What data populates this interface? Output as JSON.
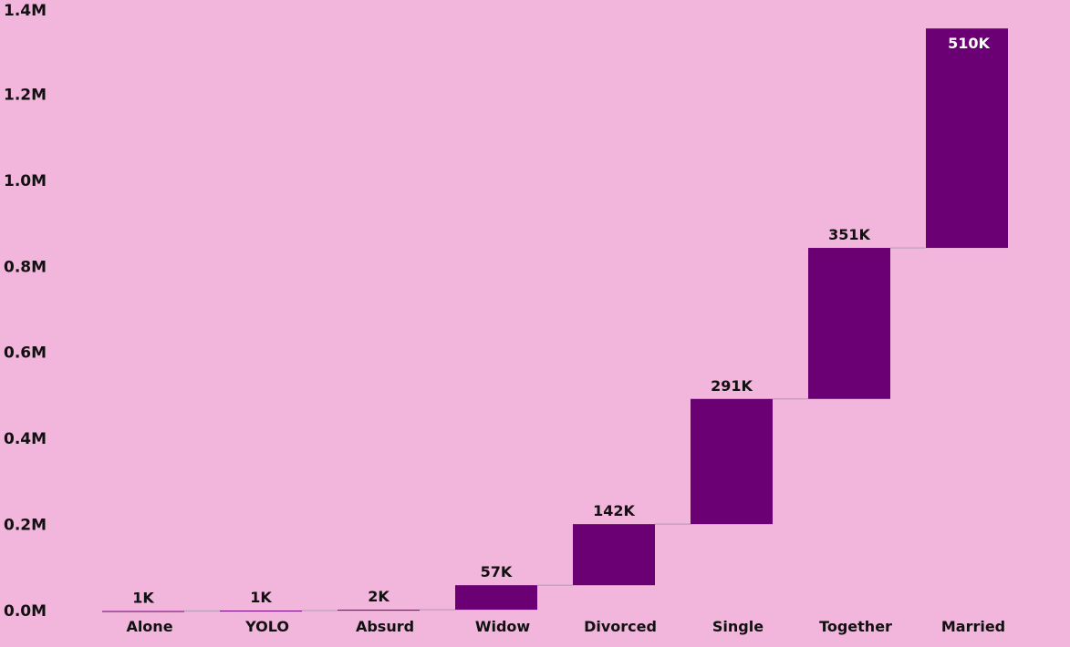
{
  "colors": {
    "background": "#f2b5dc",
    "bar": "#6a0073",
    "text": "#111111",
    "inside_label": "#ffffff",
    "connector": "#b8a0b8"
  },
  "chart_data": {
    "type": "waterfall",
    "categories": [
      "Alone",
      "YOLO",
      "Absurd",
      "Widow",
      "Divorced",
      "Single",
      "Together",
      "Married"
    ],
    "values": [
      1000,
      1000,
      2000,
      57000,
      142000,
      291000,
      351000,
      510000
    ],
    "data_labels": [
      "1K",
      "1K",
      "2K",
      "57K",
      "142K",
      "291K",
      "351K",
      "510K"
    ],
    "y_ticks": [
      0,
      200000,
      400000,
      600000,
      800000,
      1000000,
      1200000,
      1400000
    ],
    "y_tick_labels": [
      "0.0M",
      "0.2M",
      "0.4M",
      "0.6M",
      "0.8M",
      "1.0M",
      "1.2M",
      "1.4M"
    ],
    "ylim": [
      0,
      1400000
    ],
    "grid": false,
    "legend": false
  }
}
